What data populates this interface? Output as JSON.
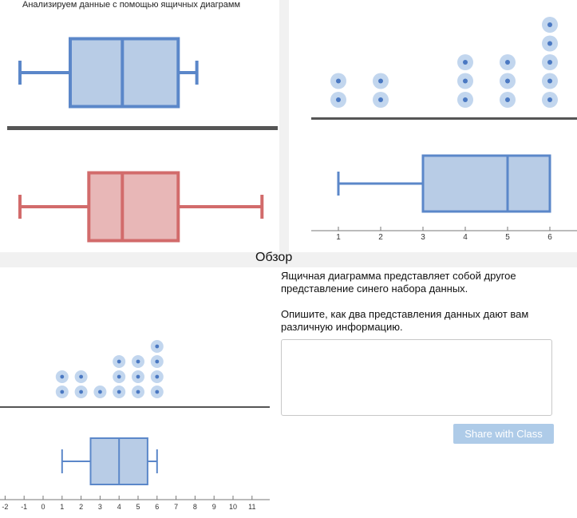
{
  "header": {
    "title": "Анализируем данные с помощью ящичных диаграмм"
  },
  "review": {
    "title": "Обзор"
  },
  "question": {
    "line1": "Ящичная диаграмма представляет собой другое",
    "line2": "представление синего набора данных.",
    "line3": "Опишите, как два представления данных дают вам",
    "line4": "различную информацию."
  },
  "answer": {
    "value": "",
    "placeholder": ""
  },
  "share_button": {
    "label": "Share with Class"
  },
  "colors": {
    "blue_fill": "#b8cce6",
    "blue_line": "#5b87c9",
    "red_fill": "#e8b7b7",
    "red_line": "#d26b6b",
    "dot": "#c2d6ee",
    "dot_center": "#4a78c2",
    "axis": "#555555"
  },
  "chart_data": [
    {
      "type": "box",
      "panel": "top-left",
      "series": [
        {
          "name": "",
          "color": "blue",
          "min": 0.5,
          "q1": 3.2,
          "median": 6.0,
          "q3": 9.0,
          "max": 10.0
        },
        {
          "name": "",
          "color": "red",
          "min": 0.5,
          "q1": 4.2,
          "median": 6.0,
          "q3": 9.0,
          "max": 13.5
        }
      ]
    },
    {
      "type": "dot",
      "panel": "top-right",
      "x_ticks": [
        1,
        2,
        3,
        4,
        5,
        6
      ],
      "counts": [
        2,
        2,
        0,
        3,
        3,
        5
      ],
      "box": {
        "min": 1,
        "q1": 3,
        "median": 5,
        "q3": 6,
        "max": 6
      }
    },
    {
      "type": "dot",
      "panel": "bottom-left",
      "x_ticks": [
        -2,
        -1,
        0,
        1,
        2,
        3,
        4,
        5,
        6,
        7,
        8,
        9,
        10,
        11
      ],
      "counts_by_value": {
        "1": 2,
        "2": 2,
        "3": 1,
        "4": 3,
        "5": 3,
        "6": 4
      },
      "box": {
        "min": 1,
        "q1": 2.5,
        "median": 4,
        "q3": 5.5,
        "max": 6
      }
    }
  ]
}
